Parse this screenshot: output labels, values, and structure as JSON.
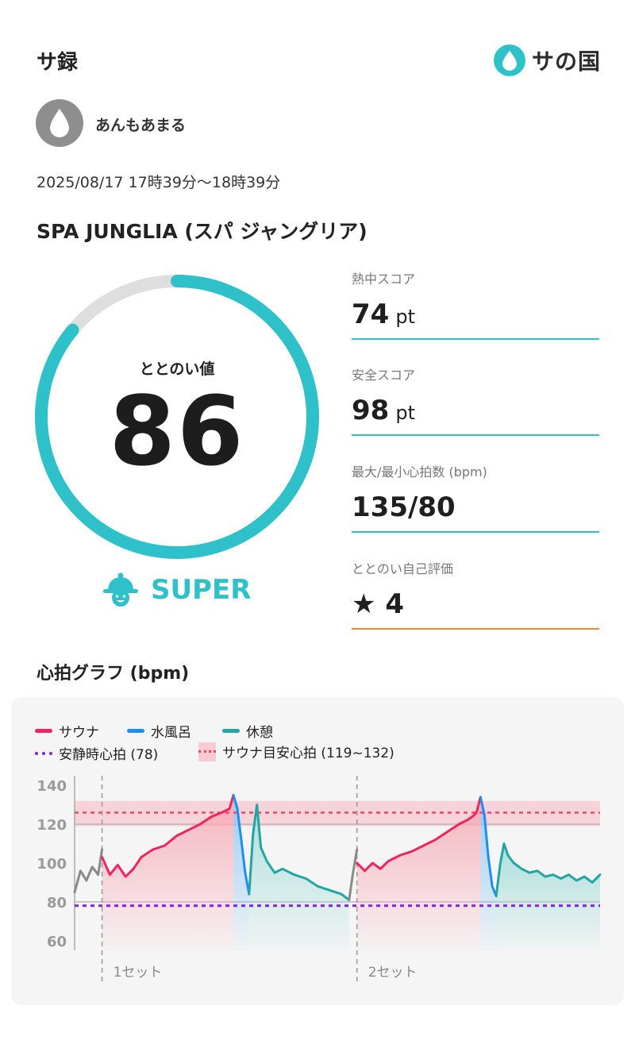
{
  "header": {
    "title": "サ録",
    "logo_text": "サの国",
    "logo_color": "#2fc1c9"
  },
  "user": {
    "name": "あんもあまる",
    "avatar_icon": "drop-icon"
  },
  "session": {
    "datetime": "2025/08/17 17時39分〜18時39分",
    "facility": "SPA JUNGLIA (スパ ジャングリア)"
  },
  "totonoi": {
    "label": "ととのい値",
    "value": "86",
    "progress": 0.86,
    "rank_icon": "sauna-hat-icon",
    "rank": "SUPER"
  },
  "stats": [
    {
      "label": "熱中スコア",
      "value": "74",
      "unit": "pt"
    },
    {
      "label": "安全スコア",
      "value": "98",
      "unit": "pt"
    },
    {
      "label": "最大/最小心拍数 (bpm)",
      "value": "135/80",
      "unit": ""
    },
    {
      "label": "ととのい自己評価",
      "value": "★ 4",
      "unit": ""
    }
  ],
  "graph": {
    "title": "心拍グラフ (bpm)",
    "legend": {
      "sauna": "サウナ",
      "water": "水風呂",
      "rest": "休憩",
      "resting_hr": "安静時心拍 (78)",
      "sauna_target": "サウナ目安心拍 (119~132)"
    },
    "colors": {
      "sauna": "#f0245e",
      "water": "#1f8ef0",
      "rest": "#22a6a2",
      "resting": "#8a1ddc",
      "target": "#f0456d"
    },
    "set_labels": [
      "1セット",
      "2セット"
    ]
  },
  "chart_data": {
    "type": "line",
    "ylim": [
      55,
      145
    ],
    "y_ticks": [
      60,
      80,
      100,
      120,
      140
    ],
    "x_range": [
      0,
      100
    ],
    "resting_hr": 78,
    "target_band": [
      119,
      132
    ],
    "target_line": 126,
    "ref_line": 120,
    "set_boundaries": [
      7,
      51
    ],
    "series": [
      {
        "phase": "warmup",
        "x": [
          0,
          1.5,
          3,
          4.5,
          6,
          7
        ],
        "y": [
          85,
          96,
          91,
          98,
          94,
          107
        ]
      },
      {
        "phase": "sauna",
        "x": [
          7,
          9,
          11,
          13,
          15,
          17,
          20,
          23,
          26,
          29,
          32,
          35,
          37.5,
          39.5,
          40.5
        ],
        "y": [
          103,
          94,
          99,
          93,
          97,
          103,
          107,
          109,
          114,
          117,
          120,
          124,
          126,
          128,
          135
        ]
      },
      {
        "phase": "water",
        "x": [
          40.5,
          41.5,
          42.5,
          43.5,
          44.5
        ],
        "y": [
          135,
          128,
          112,
          95,
          84
        ]
      },
      {
        "phase": "rest",
        "x": [
          44.5,
          45.5,
          46.5,
          47.5,
          49,
          51,
          53,
          56,
          59,
          62,
          65,
          68,
          70
        ],
        "y": [
          84,
          115,
          130,
          108,
          101,
          95,
          97,
          94,
          92,
          88,
          86,
          84,
          81
        ]
      },
      {
        "phase": "warmup",
        "x": [
          70,
          71,
          72
        ],
        "y": [
          81,
          95,
          107
        ]
      },
      {
        "phase": "sauna",
        "x": [
          72,
          74,
          76,
          78,
          80,
          83,
          86,
          89,
          92,
          95,
          98,
          100,
          101.5,
          102.5,
          103.5
        ],
        "y": [
          100,
          96,
          100,
          97,
          101,
          104,
          106,
          109,
          112,
          116,
          120,
          122,
          124,
          126,
          134
        ]
      },
      {
        "phase": "water",
        "x": [
          103.5,
          104.5,
          105.5,
          106.5,
          107.5
        ],
        "y": [
          134,
          125,
          103,
          88,
          83
        ]
      },
      {
        "phase": "rest",
        "x": [
          107.5,
          108.5,
          109.5,
          110.5,
          112,
          114,
          116,
          118,
          120,
          122,
          124,
          126,
          128,
          130,
          132,
          134
        ],
        "y": [
          83,
          99,
          110,
          104,
          100,
          97,
          95,
          96,
          93,
          94,
          92,
          94,
          91,
          93,
          90,
          94
        ]
      }
    ]
  }
}
